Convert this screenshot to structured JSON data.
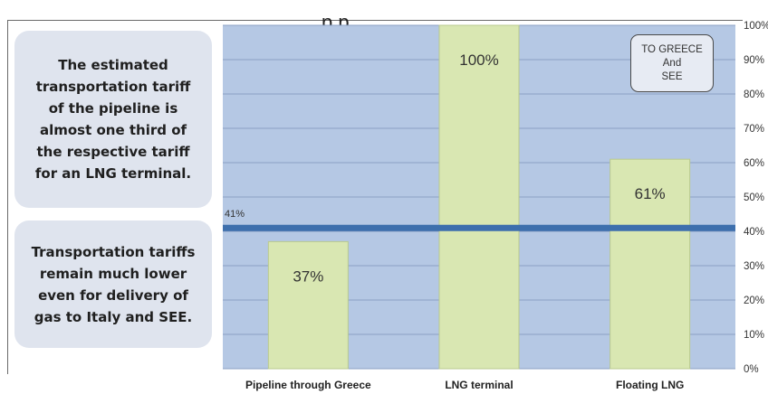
{
  "header_fragment": "p    p",
  "side_notes": {
    "box1": "The estimated transportation tariff of the pipeline is almost one third of the respective tariff for an LNG terminal.",
    "box2": "Transportation tariffs remain much lower even for delivery of gas to Italy and SEE."
  },
  "note_box": {
    "line1": "TO GREECE",
    "line2": "And",
    "line3": "SEE"
  },
  "colors": {
    "plot_background": "#b5c8e4",
    "bar_fill": "#d9e7b2",
    "bar_stroke": "#b9c98e",
    "reference_line": "#3d6fad",
    "side_box": "#dfe4ee"
  },
  "chart_data": {
    "type": "bar",
    "categories": [
      "Pipeline through Greece",
      "LNG terminal",
      "Floating LNG"
    ],
    "values": [
      37,
      100,
      61
    ],
    "data_labels": [
      "37%",
      "100%",
      "61%"
    ],
    "y_ticks": [
      "0%",
      "10%",
      "20%",
      "30%",
      "40%",
      "50%",
      "60%",
      "70%",
      "80%",
      "90%",
      "100%"
    ],
    "ylim": [
      0,
      100
    ],
    "y_axis_position": "right",
    "reference_line": {
      "value": 41,
      "label": "41%"
    },
    "grid": true,
    "title": "",
    "xlabel": "",
    "ylabel": ""
  }
}
